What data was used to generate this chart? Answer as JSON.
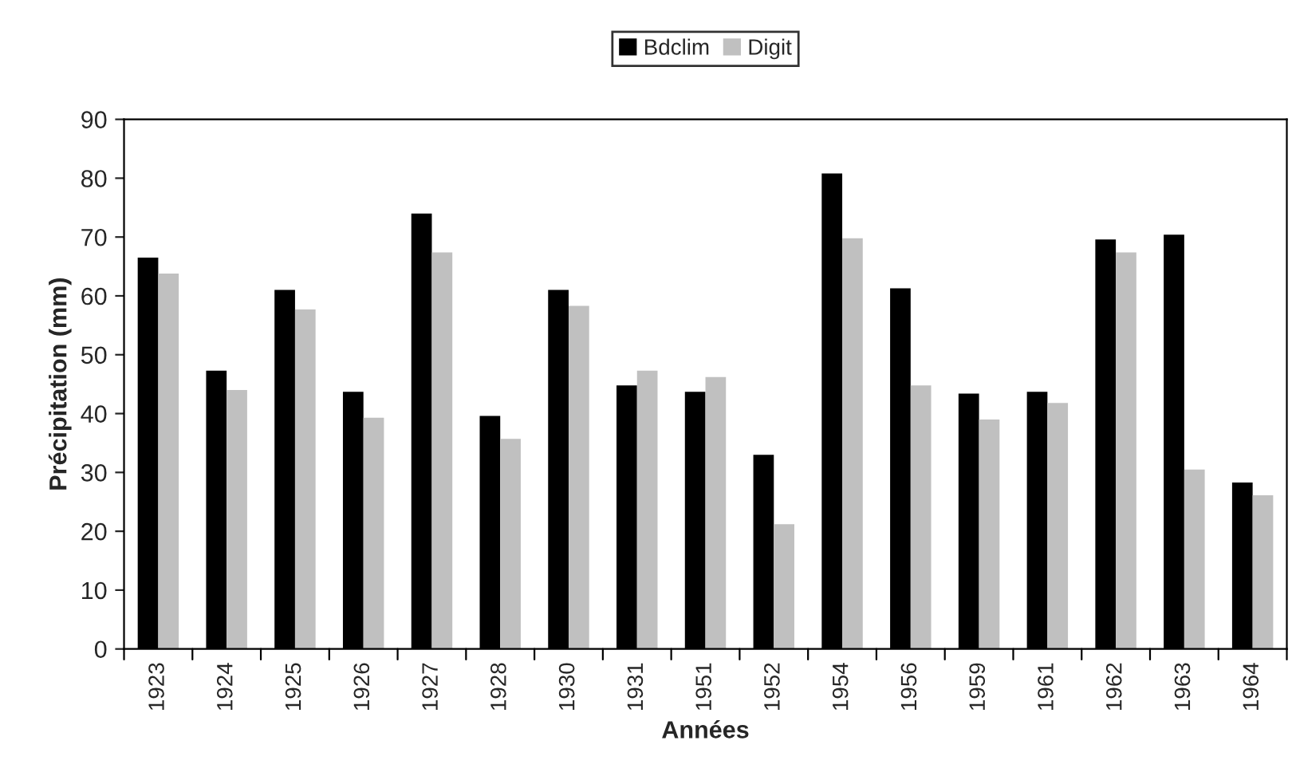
{
  "chart_data": {
    "type": "bar",
    "xlabel": "Années",
    "ylabel": "Précipitation (mm)",
    "categories": [
      "1923",
      "1924",
      "1925",
      "1926",
      "1927",
      "1928",
      "1930",
      "1931",
      "1951",
      "1952",
      "1954",
      "1956",
      "1959",
      "1961",
      "1962",
      "1963",
      "1964"
    ],
    "series": [
      {
        "name": "Bdclim",
        "color": "#000000",
        "values": [
          66.5,
          47.3,
          61.0,
          43.7,
          74.0,
          39.6,
          61.0,
          44.8,
          43.7,
          33.0,
          80.8,
          61.3,
          43.4,
          43.7,
          69.6,
          70.4,
          28.3
        ]
      },
      {
        "name": "Digit",
        "color": "#c0c0c0",
        "values": [
          63.8,
          44.0,
          57.7,
          39.3,
          67.4,
          35.7,
          58.3,
          47.3,
          46.2,
          21.2,
          69.8,
          44.8,
          39.0,
          41.8,
          67.4,
          30.5,
          26.1
        ]
      }
    ],
    "ylim": [
      0,
      90
    ],
    "yticks": [
      0,
      10,
      20,
      30,
      40,
      50,
      60,
      70,
      80,
      90
    ],
    "grid": false,
    "legend": "top"
  }
}
